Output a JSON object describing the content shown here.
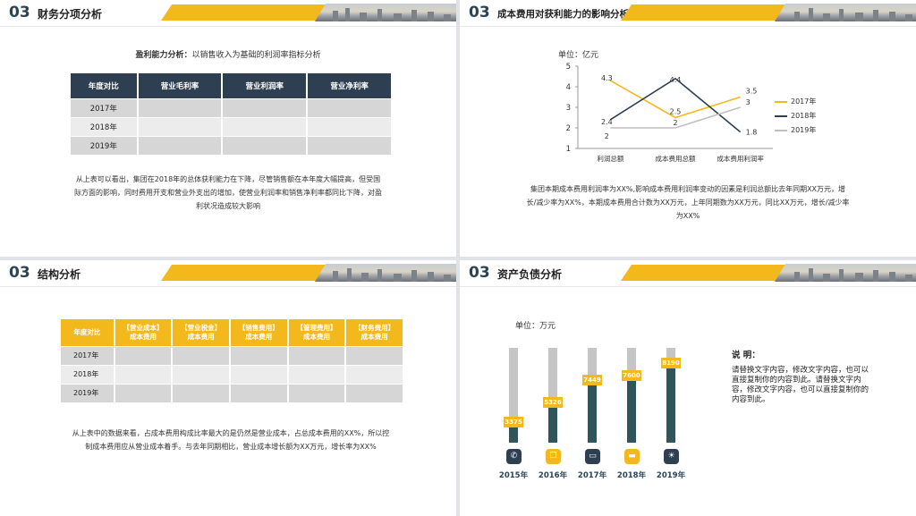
{
  "slide1": {
    "num": "03",
    "title": "财务分项分析",
    "subtitle_bold": "盈利能力分析：",
    "subtitle_rest": "以销售收入为基础的利润率指标分析",
    "table": {
      "headers": [
        "年度对比",
        "营业毛利率",
        "营业利润率",
        "营业净利率"
      ],
      "rows": [
        "2017年",
        "2018年",
        "2019年"
      ]
    },
    "paragraph": "从上表可以看出，集团在2018年的总体获利能力在下降，尽管销售额在本年度大幅提高，但受国际方面的影响，同时费用开支和营业外支出的增加，使营业利润率和销售净利率都同比下降，对盈利状况造成较大影响"
  },
  "slide2": {
    "num": "03",
    "title": "成本费用对获利能力的影响分析",
    "paragraph": "集团本期成本费用利润率为XX%,影响成本费用利润率变动的因素是利润总额比去年同期XX万元，增长/减少率为XX%，本期成本费用合计数为XX万元，上年同期数为XX万元，同比XX万元，增长/减少率为XX%"
  },
  "chart_data": {
    "type": "line",
    "unit_label": "单位：亿元",
    "categories": [
      "利润总额",
      "成本费用总额",
      "成本费用利润率"
    ],
    "ylim": [
      1,
      5
    ],
    "yticks": [
      1,
      2,
      3,
      4,
      5
    ],
    "legend_position": "right",
    "series": [
      {
        "name": "2017年",
        "values": [
          4.3,
          2.5,
          3.5
        ],
        "color": "#f3b81b"
      },
      {
        "name": "2018年",
        "values": [
          2.4,
          4.4,
          1.8
        ],
        "color": "#2e3f52"
      },
      {
        "name": "2019年",
        "values": [
          2,
          2,
          3
        ],
        "color": "#bfbfbf"
      }
    ]
  },
  "slide3": {
    "num": "03",
    "title": "结构分析",
    "table": {
      "headers": [
        {
          "line1": "年度对比",
          "line2": ""
        },
        {
          "line1": "【营业成本】",
          "line2": "成本费用"
        },
        {
          "line1": "【营业税金】",
          "line2": "成本费用"
        },
        {
          "line1": "【销售费用】",
          "line2": "成本费用"
        },
        {
          "line1": "【管理费用】",
          "line2": "成本费用"
        },
        {
          "line1": "【财务费用】",
          "line2": "成本费用"
        }
      ],
      "rows": [
        "2017年",
        "2018年",
        "2019年"
      ]
    },
    "paragraph": "从上表中的数据来看，占成本费用构成比率最大的是仍然是营业成本，占总成本费用的XX%，所以控制成本费用应从营业成本着手。与去年同期相比，营业成本增长额为XX万元，增长率为XX%"
  },
  "slide4": {
    "num": "03",
    "title": "资产负债分析",
    "unit_label": "单位：万元",
    "bars": [
      {
        "year": "2015年",
        "value": "3375",
        "level": 0.22,
        "icon": "phone-icon",
        "glyph": "✆",
        "icon_color": "#2e3f52"
      },
      {
        "year": "2016年",
        "value": "5326",
        "level": 0.42,
        "icon": "copy-icon",
        "glyph": "❐",
        "icon_color": "#f3b81b"
      },
      {
        "year": "2017年",
        "value": "7449",
        "level": 0.66,
        "icon": "chat-icon",
        "glyph": "▭",
        "icon_color": "#2e3f52"
      },
      {
        "year": "2018年",
        "value": "7600",
        "level": 0.71,
        "icon": "laptop-icon",
        "glyph": "▬",
        "icon_color": "#f3b81b"
      },
      {
        "year": "2019年",
        "value": "8190",
        "level": 0.84,
        "icon": "bulb-icon",
        "glyph": "☀",
        "icon_color": "#2e3f52"
      }
    ],
    "note_title": "说 明：",
    "note_body": "请替换文字内容，修改文字内容，也可以直接复制你的内容到此。请替换文字内容，修改文字内容，也可以直接复制你的内容到此。"
  },
  "colors": {
    "accent": "#f3b81b",
    "navy": "#2e3f52",
    "teal": "#2f5459"
  }
}
